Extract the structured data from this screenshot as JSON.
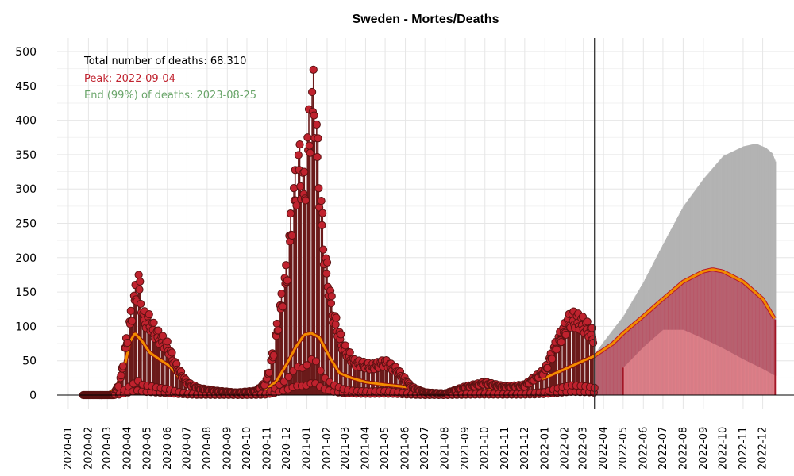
{
  "chart_data": {
    "type": "line",
    "title": "Sweden - Mortes/Deaths",
    "xlabel": "",
    "ylabel": "",
    "ylim": [
      0,
      500
    ],
    "y_ticks": [
      0,
      50,
      100,
      150,
      200,
      250,
      300,
      350,
      400,
      450,
      500
    ],
    "x_ticks": [
      "2020-01",
      "2020-02",
      "2020-03",
      "2020-04",
      "2020-05",
      "2020-06",
      "2020-07",
      "2020-08",
      "2020-09",
      "2020-10",
      "2020-11",
      "2020-12",
      "2021-01",
      "2021-02",
      "2021-03",
      "2021-04",
      "2021-05",
      "2021-06",
      "2021-07",
      "2021-08",
      "2021-09",
      "2021-10",
      "2021-11",
      "2021-12",
      "2022-01",
      "2022-02",
      "2022-03",
      "2022-04",
      "2022-05",
      "2022-06",
      "2022-07",
      "2022-08",
      "2022-09",
      "2022-10",
      "2022-11",
      "2022-12"
    ],
    "x_range": [
      "2019-12-15",
      "2023-01-18"
    ],
    "grid": true,
    "current_date_line": "2022-03-18",
    "annotations": {
      "total": "Total number of deaths: 68.310",
      "peak": "Peak: 2022-09-04",
      "end": "End (99%) of deaths: 2023-08-25"
    },
    "colors": {
      "observed_points": "#c0222e",
      "observed_stems": "#6b1a1a",
      "smooth_line": "#f28c00",
      "forecast_upper": "#b3b3b3",
      "forecast_median": "#b85566",
      "forecast_lower": "#df7f88",
      "forecast_line": "#a01020"
    },
    "observed_daily_deaths_anchors": [
      [
        "2020-01-24",
        0
      ],
      [
        "2020-02-25",
        0
      ],
      [
        "2020-03-10",
        0
      ],
      [
        "2020-03-20",
        15
      ],
      [
        "2020-03-28",
        55
      ],
      [
        "2020-04-05",
        90
      ],
      [
        "2020-04-12",
        120
      ],
      [
        "2020-04-18",
        140
      ],
      [
        "2020-04-25",
        95
      ],
      [
        "2020-05-05",
        90
      ],
      [
        "2020-05-15",
        75
      ],
      [
        "2020-06-01",
        60
      ],
      [
        "2020-06-15",
        35
      ],
      [
        "2020-07-01",
        15
      ],
      [
        "2020-07-20",
        8
      ],
      [
        "2020-08-15",
        5
      ],
      [
        "2020-09-15",
        3
      ],
      [
        "2020-10-15",
        5
      ],
      [
        "2020-10-30",
        15
      ],
      [
        "2020-11-10",
        50
      ],
      [
        "2020-11-20",
        100
      ],
      [
        "2020-12-01",
        150
      ],
      [
        "2020-12-10",
        230
      ],
      [
        "2020-12-20",
        285
      ],
      [
        "2020-12-28",
        250
      ],
      [
        "2021-01-05",
        330
      ],
      [
        "2021-01-12",
        370
      ],
      [
        "2021-01-20",
        260
      ],
      [
        "2021-01-28",
        170
      ],
      [
        "2021-02-10",
        100
      ],
      [
        "2021-02-25",
        60
      ],
      [
        "2021-03-15",
        40
      ],
      [
        "2021-04-10",
        35
      ],
      [
        "2021-05-01",
        40
      ],
      [
        "2021-05-20",
        30
      ],
      [
        "2021-06-10",
        10
      ],
      [
        "2021-07-01",
        3
      ],
      [
        "2021-08-01",
        2
      ],
      [
        "2021-09-01",
        10
      ],
      [
        "2021-10-01",
        15
      ],
      [
        "2021-11-01",
        10
      ],
      [
        "2021-12-01",
        12
      ],
      [
        "2022-01-01",
        30
      ],
      [
        "2022-01-20",
        65
      ],
      [
        "2022-02-10",
        95
      ],
      [
        "2022-02-25",
        90
      ],
      [
        "2022-03-10",
        80
      ],
      [
        "2022-03-18",
        70
      ]
    ],
    "observed_smooth_anchors": [
      [
        "2020-01-24",
        0
      ],
      [
        "2020-03-01",
        1
      ],
      [
        "2020-03-15",
        10
      ],
      [
        "2020-03-28",
        45
      ],
      [
        "2020-04-05",
        78
      ],
      [
        "2020-04-12",
        90
      ],
      [
        "2020-04-22",
        80
      ],
      [
        "2020-05-05",
        62
      ],
      [
        "2020-05-20",
        52
      ],
      [
        "2020-06-05",
        42
      ],
      [
        "2020-06-20",
        25
      ],
      [
        "2020-07-05",
        12
      ],
      [
        "2020-07-25",
        6
      ],
      [
        "2020-08-20",
        3
      ],
      [
        "2020-09-20",
        2
      ],
      [
        "2020-10-15",
        3
      ],
      [
        "2020-10-30",
        8
      ],
      [
        "2020-11-15",
        20
      ],
      [
        "2020-12-01",
        45
      ],
      [
        "2020-12-15",
        70
      ],
      [
        "2020-12-28",
        88
      ],
      [
        "2021-01-08",
        90
      ],
      [
        "2021-01-20",
        84
      ],
      [
        "2021-02-05",
        55
      ],
      [
        "2021-02-20",
        32
      ],
      [
        "2021-03-10",
        25
      ],
      [
        "2021-04-01",
        19
      ],
      [
        "2021-05-01",
        15
      ],
      [
        "2021-06-01",
        12
      ],
      [
        "2021-07-01",
        7
      ],
      [
        "2021-08-01",
        4
      ],
      [
        "2021-09-01",
        4
      ],
      [
        "2021-10-01",
        6
      ],
      [
        "2021-11-01",
        10
      ],
      [
        "2021-12-01",
        17
      ],
      [
        "2022-01-01",
        25
      ],
      [
        "2022-02-01",
        38
      ],
      [
        "2022-03-01",
        50
      ],
      [
        "2022-03-18",
        57
      ]
    ],
    "forecast_upper_anchors": [
      [
        "2022-03-18",
        60
      ],
      [
        "2022-04-01",
        78
      ],
      [
        "2022-05-01",
        115
      ],
      [
        "2022-06-01",
        165
      ],
      [
        "2022-07-01",
        220
      ],
      [
        "2022-08-01",
        275
      ],
      [
        "2022-09-01",
        315
      ],
      [
        "2022-10-01",
        348
      ],
      [
        "2022-11-01",
        362
      ],
      [
        "2022-11-20",
        366
      ],
      [
        "2022-12-05",
        360
      ],
      [
        "2022-12-15",
        352
      ],
      [
        "2022-12-20",
        340
      ]
    ],
    "forecast_median_anchors": [
      [
        "2022-03-18",
        57
      ],
      [
        "2022-04-15",
        75
      ],
      [
        "2022-05-01",
        90
      ],
      [
        "2022-06-01",
        115
      ],
      [
        "2022-07-01",
        140
      ],
      [
        "2022-08-01",
        165
      ],
      [
        "2022-09-01",
        180
      ],
      [
        "2022-09-15",
        183
      ],
      [
        "2022-10-01",
        180
      ],
      [
        "2022-11-01",
        165
      ],
      [
        "2022-12-01",
        140
      ],
      [
        "2022-12-20",
        110
      ]
    ],
    "forecast_lower_anchors": [
      [
        "2022-05-01",
        40
      ],
      [
        "2022-06-01",
        70
      ],
      [
        "2022-07-01",
        95
      ],
      [
        "2022-08-01",
        95
      ],
      [
        "2022-09-01",
        82
      ],
      [
        "2022-10-01",
        68
      ],
      [
        "2022-11-01",
        52
      ],
      [
        "2022-12-01",
        38
      ],
      [
        "2022-12-20",
        28
      ]
    ]
  }
}
